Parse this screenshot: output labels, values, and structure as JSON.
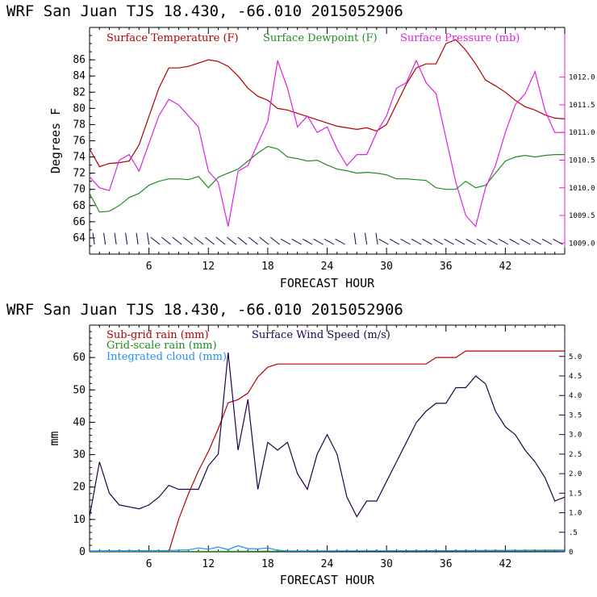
{
  "chart_data": [
    {
      "type": "line",
      "header": "WRF  San Juan TJS  18.430, -66.010  2015052906",
      "xlabel": "FORECAST HOUR",
      "ylabel": "Degrees F",
      "xlim": [
        0,
        48
      ],
      "ylim": [
        62,
        90
      ],
      "y2lim": [
        1008.8,
        1012.9
      ],
      "xticks": [
        "6",
        "12",
        "18",
        "24",
        "30",
        "36",
        "42"
      ],
      "yticks": [
        "64",
        "66",
        "68",
        "70",
        "72",
        "74",
        "76",
        "78",
        "80",
        "82",
        "84",
        "86"
      ],
      "y2ticks": [
        "1009.0",
        "1009.5",
        "1010.0",
        "1010.5",
        "1011.0",
        "1011.5",
        "1012.0"
      ],
      "colors": {
        "temperature": "#b00000",
        "dewpoint": "#228b22",
        "pressure": "#dd22dd",
        "wind": "#20004a"
      },
      "wind_barbs": "row of wind barbs at 64 F level",
      "series": [
        {
          "name": "Surface Temperature (F)",
          "axis": "left",
          "points": [
            [
              0,
              75
            ],
            [
              1,
              72.8
            ],
            [
              2,
              73.2
            ],
            [
              3,
              73.3
            ],
            [
              4,
              73.5
            ],
            [
              5,
              75.5
            ],
            [
              6,
              79
            ],
            [
              7,
              82.5
            ],
            [
              8,
              85
            ],
            [
              9,
              85
            ],
            [
              10,
              85.2
            ],
            [
              11,
              85.6
            ],
            [
              12,
              86
            ],
            [
              13,
              85.8
            ],
            [
              14,
              85.2
            ],
            [
              15,
              84
            ],
            [
              16,
              82.5
            ],
            [
              17,
              81.5
            ],
            [
              18,
              81
            ],
            [
              19,
              80
            ],
            [
              20,
              79.8
            ],
            [
              21,
              79.4
            ],
            [
              22,
              79
            ],
            [
              23,
              78.6
            ],
            [
              24,
              78.2
            ],
            [
              25,
              77.8
            ],
            [
              26,
              77.6
            ],
            [
              27,
              77.4
            ],
            [
              28,
              77.6
            ],
            [
              29,
              77.2
            ],
            [
              30,
              78
            ],
            [
              31,
              80.5
            ],
            [
              32,
              83
            ],
            [
              33,
              85
            ],
            [
              34,
              85.5
            ],
            [
              35,
              85.5
            ],
            [
              36,
              88
            ],
            [
              37,
              88.5
            ],
            [
              38,
              87.2
            ],
            [
              39,
              85.5
            ],
            [
              40,
              83.5
            ],
            [
              41,
              82.8
            ],
            [
              42,
              82
            ],
            [
              43,
              81
            ],
            [
              44,
              80.2
            ],
            [
              45,
              79.8
            ],
            [
              46,
              79.2
            ],
            [
              47,
              78.8
            ],
            [
              48,
              78.7
            ]
          ]
        },
        {
          "name": "Surface Dewpoint (F)",
          "axis": "left",
          "points": [
            [
              0,
              69.5
            ],
            [
              1,
              67.2
            ],
            [
              2,
              67.3
            ],
            [
              3,
              68
            ],
            [
              4,
              69
            ],
            [
              5,
              69.5
            ],
            [
              6,
              70.5
            ],
            [
              7,
              71
            ],
            [
              8,
              71.3
            ],
            [
              9,
              71.3
            ],
            [
              10,
              71.2
            ],
            [
              11,
              71.6
            ],
            [
              12,
              70.2
            ],
            [
              13,
              71.5
            ],
            [
              14,
              72
            ],
            [
              15,
              72.5
            ],
            [
              16,
              73.5
            ],
            [
              17,
              74.5
            ],
            [
              18,
              75.3
            ],
            [
              19,
              75
            ],
            [
              20,
              74
            ],
            [
              21,
              73.8
            ],
            [
              22,
              73.5
            ],
            [
              23,
              73.6
            ],
            [
              24,
              73
            ],
            [
              25,
              72.5
            ],
            [
              26,
              72.3
            ],
            [
              27,
              72
            ],
            [
              28,
              72.1
            ],
            [
              29,
              72
            ],
            [
              30,
              71.8
            ],
            [
              31,
              71.3
            ],
            [
              32,
              71.3
            ],
            [
              33,
              71.2
            ],
            [
              34,
              71.1
            ],
            [
              35,
              70.2
            ],
            [
              36,
              70
            ],
            [
              37,
              70
            ],
            [
              38,
              71
            ],
            [
              39,
              70.2
            ],
            [
              40,
              70.5
            ],
            [
              41,
              72
            ],
            [
              42,
              73.5
            ],
            [
              43,
              74
            ],
            [
              44,
              74.2
            ],
            [
              45,
              74
            ],
            [
              46,
              74.2
            ],
            [
              47,
              74.3
            ],
            [
              48,
              74.3
            ]
          ]
        },
        {
          "name": "Surface Pressure (mb)",
          "axis": "right",
          "points": [
            [
              0,
              1010.2
            ],
            [
              1,
              1010
            ],
            [
              2,
              1009.95
            ],
            [
              3,
              1010.5
            ],
            [
              4,
              1010.6
            ],
            [
              5,
              1010.3
            ],
            [
              6,
              1010.8
            ],
            [
              7,
              1011.3
            ],
            [
              8,
              1011.6
            ],
            [
              9,
              1011.5
            ],
            [
              10,
              1011.3
            ],
            [
              11,
              1011.1
            ],
            [
              12,
              1010.3
            ],
            [
              13,
              1010.1
            ],
            [
              14,
              1009.3
            ],
            [
              15,
              1010.3
            ],
            [
              16,
              1010.4
            ],
            [
              17,
              1010.8
            ],
            [
              18,
              1011.2
            ],
            [
              19,
              1012.3
            ],
            [
              20,
              1011.8
            ],
            [
              21,
              1011.1
            ],
            [
              22,
              1011.3
            ],
            [
              23,
              1011.0
            ],
            [
              24,
              1011.1
            ],
            [
              25,
              1010.7
            ],
            [
              26,
              1010.4
            ],
            [
              27,
              1010.6
            ],
            [
              28,
              1010.6
            ],
            [
              29,
              1011.0
            ],
            [
              30,
              1011.3
            ],
            [
              31,
              1011.8
            ],
            [
              32,
              1011.9
            ],
            [
              33,
              1012.3
            ],
            [
              34,
              1011.9
            ],
            [
              35,
              1011.7
            ],
            [
              36,
              1010.9
            ],
            [
              37,
              1010.1
            ],
            [
              38,
              1009.5
            ],
            [
              39,
              1009.3
            ],
            [
              40,
              1010.0
            ],
            [
              41,
              1010.4
            ],
            [
              42,
              1011.0
            ],
            [
              43,
              1011.5
            ],
            [
              44,
              1011.7
            ],
            [
              45,
              1012.1
            ],
            [
              46,
              1011.4
            ],
            [
              47,
              1011.0
            ],
            [
              48,
              1011.0
            ]
          ]
        }
      ]
    },
    {
      "type": "line",
      "header": "WRF  San Juan TJS  18.430, -66.010  2015052906",
      "xlabel": "FORECAST HOUR",
      "ylabel": "mm",
      "xlim": [
        0,
        48
      ],
      "ylim": [
        0,
        70
      ],
      "y2lim": [
        0,
        5.8
      ],
      "xticks": [
        "6",
        "12",
        "18",
        "24",
        "30",
        "36",
        "42"
      ],
      "yticks": [
        "0",
        "10",
        "20",
        "30",
        "40",
        "50",
        "60"
      ],
      "y2ticks": [
        "0",
        ".5",
        "1.0",
        "1.5",
        "2.0",
        "2.5",
        "3.0",
        "3.5",
        "4.0",
        "4.5",
        "5.0"
      ],
      "colors": {
        "subgrid": "#b00000",
        "grid": "#228b22",
        "cloud": "#1e90ff",
        "wind": "#20004a"
      },
      "series": [
        {
          "name": "Sub-grid rain (mm)",
          "axis": "left",
          "points": [
            [
              0,
              0
            ],
            [
              8,
              0
            ],
            [
              9,
              10
            ],
            [
              10,
              18
            ],
            [
              11,
              25
            ],
            [
              12,
              31
            ],
            [
              13,
              38
            ],
            [
              14,
              46
            ],
            [
              15,
              47
            ],
            [
              16,
              49
            ],
            [
              17,
              54
            ],
            [
              18,
              57
            ],
            [
              19,
              58
            ],
            [
              20,
              58
            ],
            [
              30,
              58
            ],
            [
              34,
              58
            ],
            [
              35,
              60
            ],
            [
              37,
              60
            ],
            [
              38,
              62
            ],
            [
              48,
              62
            ]
          ]
        },
        {
          "name": "Grid-scale rain (mm)",
          "axis": "left",
          "points": [
            [
              0,
              0
            ],
            [
              10,
              0.1
            ],
            [
              20,
              0.2
            ],
            [
              30,
              0.3
            ],
            [
              40,
              0.4
            ],
            [
              48,
              0.5
            ]
          ]
        },
        {
          "name": "Integrated cloud (mm)",
          "axis": "left",
          "points": [
            [
              0,
              0.3
            ],
            [
              8,
              0.4
            ],
            [
              10,
              0.6
            ],
            [
              11,
              1.2
            ],
            [
              12,
              0.8
            ],
            [
              13,
              1.5
            ],
            [
              14,
              0.7
            ],
            [
              15,
              1.9
            ],
            [
              16,
              1.0
            ],
            [
              17,
              0.9
            ],
            [
              18,
              1.2
            ],
            [
              19,
              0.5
            ],
            [
              20,
              0.3
            ],
            [
              24,
              0.3
            ],
            [
              30,
              0.3
            ],
            [
              48,
              0.3
            ]
          ]
        },
        {
          "name": "Surface Wind Speed (m/s)",
          "axis": "right",
          "points": [
            [
              0,
              0.9
            ],
            [
              1,
              2.3
            ],
            [
              2,
              1.5
            ],
            [
              3,
              1.2
            ],
            [
              4,
              1.15
            ],
            [
              5,
              1.1
            ],
            [
              6,
              1.2
            ],
            [
              7,
              1.4
            ],
            [
              8,
              1.7
            ],
            [
              9,
              1.6
            ],
            [
              10,
              1.6
            ],
            [
              11,
              1.6
            ],
            [
              12,
              2.2
            ],
            [
              13,
              2.5
            ],
            [
              14,
              5.1
            ],
            [
              15,
              2.6
            ],
            [
              16,
              3.9
            ],
            [
              17,
              1.6
            ],
            [
              18,
              2.8
            ],
            [
              19,
              2.6
            ],
            [
              20,
              2.8
            ],
            [
              21,
              2.0
            ],
            [
              22,
              1.6
            ],
            [
              23,
              2.5
            ],
            [
              24,
              3.0
            ],
            [
              25,
              2.5
            ],
            [
              26,
              1.4
            ],
            [
              27,
              0.9
            ],
            [
              28,
              1.3
            ],
            [
              29,
              1.3
            ],
            [
              30,
              1.8
            ],
            [
              31,
              2.3
            ],
            [
              32,
              2.8
            ],
            [
              33,
              3.3
            ],
            [
              34,
              3.6
            ],
            [
              35,
              3.8
            ],
            [
              36,
              3.8
            ],
            [
              37,
              4.2
            ],
            [
              38,
              4.2
            ],
            [
              39,
              4.5
            ],
            [
              40,
              4.3
            ],
            [
              41,
              3.6
            ],
            [
              42,
              3.2
            ],
            [
              43,
              3.0
            ],
            [
              44,
              2.6
            ],
            [
              45,
              2.3
            ],
            [
              46,
              1.9
            ],
            [
              47,
              1.3
            ],
            [
              48,
              1.4
            ]
          ]
        }
      ]
    }
  ]
}
